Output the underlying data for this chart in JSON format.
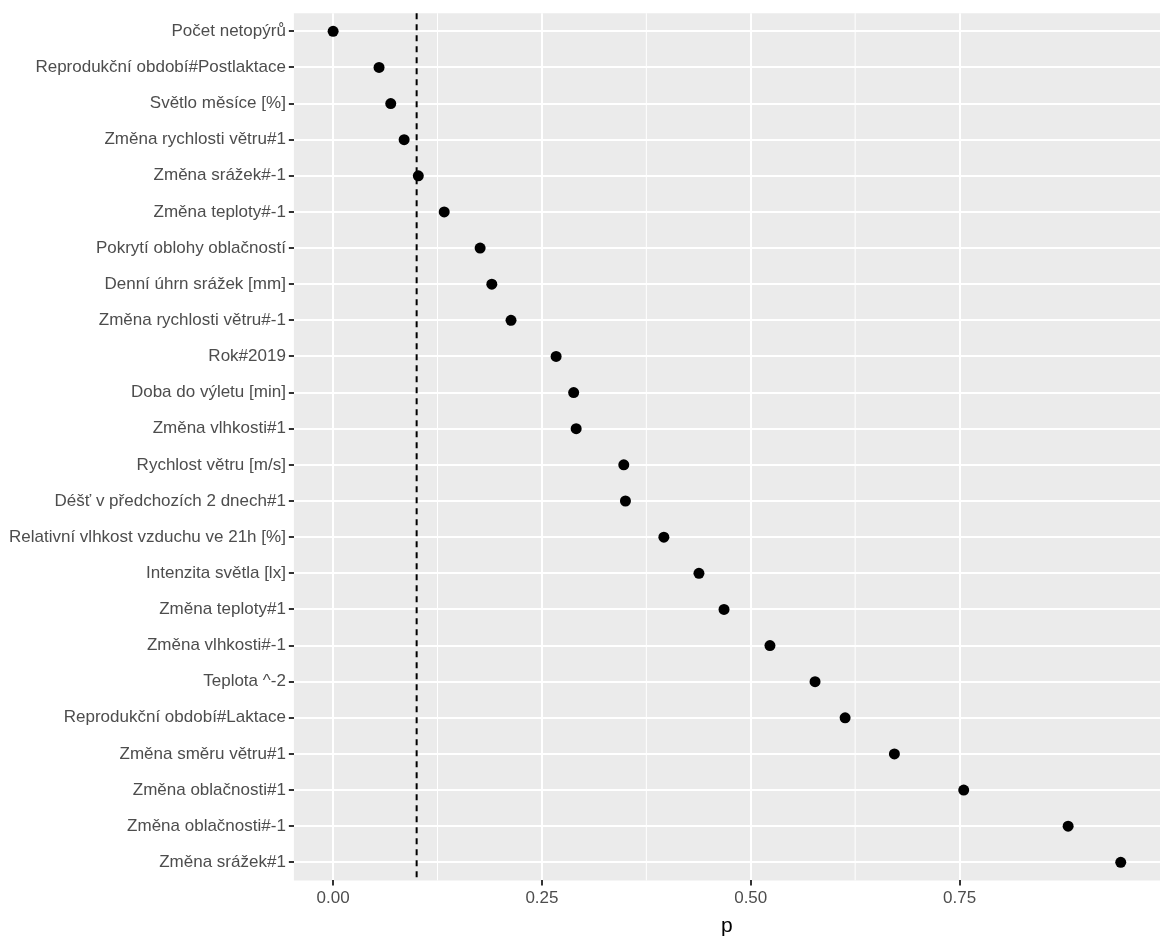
{
  "chart_data": {
    "type": "scatter",
    "orientation": "horizontal",
    "xlabel": "p",
    "categories": [
      "Počet netopýrů",
      "Reprodukční období#Postlaktace",
      "Světlo měsíce [%]",
      "Změna rychlosti větru#1",
      "Změna srážek#-1",
      "Změna teploty#-1",
      "Pokrytí oblohy oblačností",
      "Denní úhrn srážek [mm]",
      "Změna rychlosti větru#-1",
      "Rok#2019",
      "Doba do výletu [min]",
      "Změna vlhkosti#1",
      "Rychlost větru [m/s]",
      "Déšť v předchozích 2 dnech#1",
      "Relativní vlhkost vzduchu ve 21h [%]",
      "Intenzita světla [lx]",
      "Změna teploty#1",
      "Změna vlhkosti#-1",
      "Teplota ^-2",
      "Reprodukční období#Laktace",
      "Změna směru větru#1",
      "Změna oblačnosti#1",
      "Změna oblačnosti#-1",
      "Změna srážek#1"
    ],
    "values": [
      0.0,
      0.055,
      0.069,
      0.085,
      0.102,
      0.133,
      0.176,
      0.19,
      0.213,
      0.267,
      0.288,
      0.291,
      0.348,
      0.35,
      0.396,
      0.438,
      0.468,
      0.523,
      0.577,
      0.613,
      0.672,
      0.755,
      0.88,
      0.943
    ],
    "color": "#000000",
    "marker": "circle",
    "xlim": [
      -0.047,
      0.99
    ],
    "xticks": [
      {
        "value": 0,
        "label": "0.00"
      },
      {
        "value": 0.25,
        "label": "0.25"
      },
      {
        "value": 0.5,
        "label": "0.50"
      },
      {
        "value": 0.75,
        "label": "0.75"
      }
    ],
    "grid": true,
    "ref_lines": [
      {
        "axis": "x",
        "value": 0.1,
        "color": "#000000",
        "line_style": "dashed"
      }
    ]
  }
}
